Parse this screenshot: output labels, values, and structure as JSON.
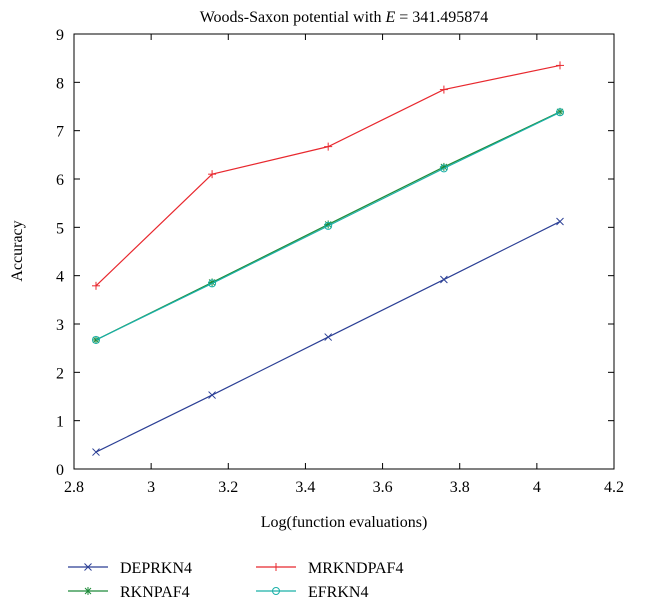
{
  "chart_data": {
    "type": "line",
    "title": "Woods-Saxon potential with E = 341.495874",
    "title_parts": {
      "prefix": "Woods-Saxon potential with ",
      "variable": "E",
      "suffix": " = 341.495874"
    },
    "xlabel": "Log(function evaluations)",
    "ylabel": "Accuracy",
    "xlim": [
      2.8,
      4.2
    ],
    "ylim": [
      0,
      9
    ],
    "xticks": [
      "2.8",
      "3",
      "3.2",
      "3.4",
      "3.6",
      "3.8",
      "4",
      "4.2"
    ],
    "yticks": [
      "0",
      "1",
      "2",
      "3",
      "4",
      "5",
      "6",
      "7",
      "8",
      "9"
    ],
    "grid": false,
    "legend_position": "bottom",
    "series": [
      {
        "name": "DEPRKN4",
        "color": "#2b3f95",
        "marker": "x",
        "x": [
          2.857,
          3.158,
          3.459,
          3.759,
          4.06
        ],
        "y": [
          0.35,
          1.53,
          2.73,
          3.92,
          5.12
        ]
      },
      {
        "name": "MRKNDPAF4",
        "color": "#e8282e",
        "marker": "plus",
        "x": [
          2.857,
          3.158,
          3.459,
          3.759,
          4.06
        ],
        "y": [
          3.79,
          6.1,
          6.67,
          7.85,
          8.35
        ]
      },
      {
        "name": "RKNPAF4",
        "color": "#1f8b3a",
        "marker": "star",
        "x": [
          2.857,
          3.158,
          3.459,
          3.759,
          4.06
        ],
        "y": [
          2.67,
          3.86,
          5.06,
          6.25,
          7.39
        ]
      },
      {
        "name": "EFRKN4",
        "color": "#1ab0a8",
        "marker": "circle",
        "x": [
          2.857,
          3.158,
          3.459,
          3.759,
          4.06
        ],
        "y": [
          2.67,
          3.84,
          5.03,
          6.22,
          7.38
        ]
      }
    ]
  }
}
